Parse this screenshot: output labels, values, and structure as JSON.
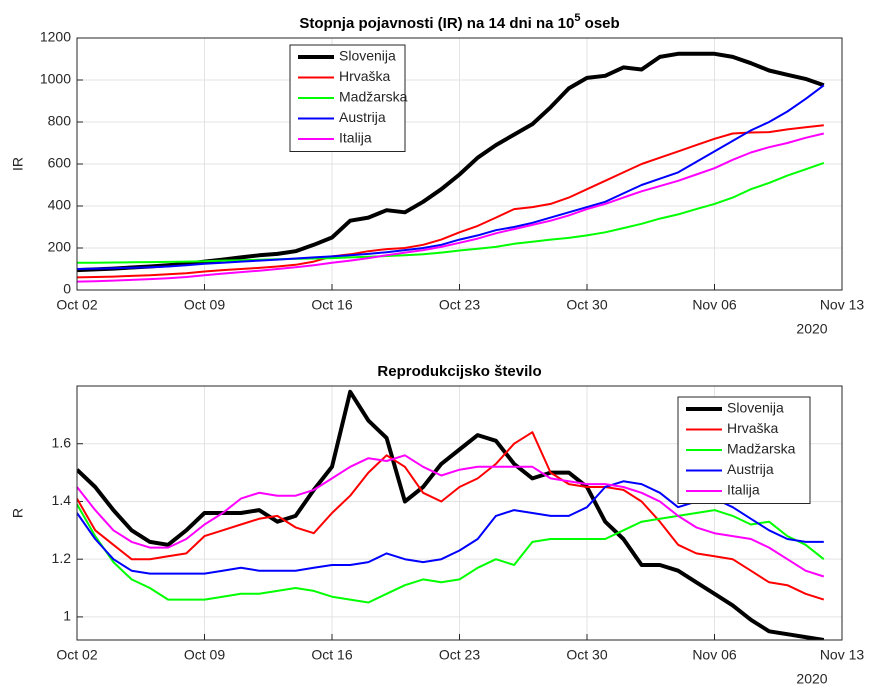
{
  "chart_data": [
    {
      "type": "line",
      "title": [
        "Stopnja pojavnosti (IR) na 14 dni na 10",
        "5",
        " oseb"
      ],
      "ylabel": "IR",
      "x_offset_label": "2020",
      "x": [
        "2020-10-02",
        "2020-10-03",
        "2020-10-04",
        "2020-10-05",
        "2020-10-06",
        "2020-10-07",
        "2020-10-08",
        "2020-10-09",
        "2020-10-10",
        "2020-10-11",
        "2020-10-12",
        "2020-10-13",
        "2020-10-14",
        "2020-10-15",
        "2020-10-16",
        "2020-10-17",
        "2020-10-18",
        "2020-10-19",
        "2020-10-20",
        "2020-10-21",
        "2020-10-22",
        "2020-10-23",
        "2020-10-24",
        "2020-10-25",
        "2020-10-26",
        "2020-10-27",
        "2020-10-28",
        "2020-10-29",
        "2020-10-30",
        "2020-10-31",
        "2020-11-01",
        "2020-11-02",
        "2020-11-03",
        "2020-11-04",
        "2020-11-05",
        "2020-11-06",
        "2020-11-07",
        "2020-11-08",
        "2020-11-09",
        "2020-11-10",
        "2020-11-11",
        "2020-11-12"
      ],
      "xlim": [
        "2020-10-02",
        "2020-11-13"
      ],
      "xticks": [
        {
          "value": "2020-10-02",
          "label": "Oct 02"
        },
        {
          "value": "2020-10-09",
          "label": "Oct 09"
        },
        {
          "value": "2020-10-16",
          "label": "Oct 16"
        },
        {
          "value": "2020-10-23",
          "label": "Oct 23"
        },
        {
          "value": "2020-10-30",
          "label": "Oct 30"
        },
        {
          "value": "2020-11-06",
          "label": "Nov 06"
        },
        {
          "value": "2020-11-13",
          "label": "Nov 13"
        }
      ],
      "ylim": [
        0,
        1200
      ],
      "yticks": [
        0,
        200,
        400,
        600,
        800,
        1000,
        1200
      ],
      "grid": true,
      "legend_loc": "north",
      "series": [
        {
          "name": "Slovenija",
          "color": "#000000",
          "values": [
            95,
            98,
            102,
            107,
            112,
            118,
            125,
            135,
            145,
            155,
            165,
            172,
            185,
            215,
            250,
            330,
            345,
            380,
            370,
            420,
            480,
            550,
            630,
            690,
            740,
            790,
            870,
            960,
            1010,
            1020,
            1060,
            1050,
            1110,
            1125,
            1125,
            1125,
            1110,
            1080,
            1045,
            1025,
            1005,
            975
          ]
        },
        {
          "name": "Hrvaška",
          "color": "#ff0000",
          "values": [
            60,
            62,
            64,
            67,
            70,
            75,
            80,
            88,
            95,
            100,
            105,
            112,
            120,
            135,
            160,
            170,
            185,
            195,
            200,
            215,
            240,
            275,
            305,
            345,
            385,
            395,
            410,
            440,
            480,
            520,
            560,
            600,
            630,
            660,
            690,
            720,
            745,
            750,
            752,
            765,
            775,
            785
          ]
        },
        {
          "name": "Madžarska",
          "color": "#00ff00",
          "values": [
            130,
            130,
            131,
            132,
            133,
            134,
            135,
            137,
            140,
            142,
            144,
            146,
            148,
            150,
            152,
            155,
            158,
            162,
            165,
            170,
            178,
            188,
            196,
            205,
            220,
            230,
            240,
            248,
            260,
            275,
            295,
            315,
            340,
            360,
            385,
            410,
            440,
            480,
            510,
            545,
            575,
            605
          ]
        },
        {
          "name": "Austrija",
          "color": "#0000ff",
          "values": [
            100,
            102,
            104,
            106,
            108,
            112,
            118,
            125,
            130,
            135,
            140,
            145,
            150,
            155,
            160,
            165,
            172,
            180,
            190,
            200,
            215,
            240,
            260,
            285,
            300,
            320,
            345,
            370,
            395,
            420,
            460,
            500,
            530,
            560,
            610,
            660,
            710,
            760,
            800,
            850,
            910,
            975
          ]
        },
        {
          "name": "Italija",
          "color": "#ff00ff",
          "values": [
            40,
            42,
            45,
            48,
            52,
            56,
            62,
            70,
            78,
            85,
            92,
            100,
            108,
            118,
            130,
            140,
            152,
            165,
            178,
            190,
            205,
            225,
            245,
            270,
            290,
            310,
            330,
            355,
            385,
            410,
            440,
            470,
            495,
            520,
            550,
            580,
            620,
            655,
            680,
            700,
            725,
            745
          ]
        }
      ]
    },
    {
      "type": "line",
      "title": [
        "Reprodukcijsko število"
      ],
      "ylabel": "R",
      "x_offset_label": "2020",
      "x": [
        "2020-10-02",
        "2020-10-03",
        "2020-10-04",
        "2020-10-05",
        "2020-10-06",
        "2020-10-07",
        "2020-10-08",
        "2020-10-09",
        "2020-10-10",
        "2020-10-11",
        "2020-10-12",
        "2020-10-13",
        "2020-10-14",
        "2020-10-15",
        "2020-10-16",
        "2020-10-17",
        "2020-10-18",
        "2020-10-19",
        "2020-10-20",
        "2020-10-21",
        "2020-10-22",
        "2020-10-23",
        "2020-10-24",
        "2020-10-25",
        "2020-10-26",
        "2020-10-27",
        "2020-10-28",
        "2020-10-29",
        "2020-10-30",
        "2020-10-31",
        "2020-11-01",
        "2020-11-02",
        "2020-11-03",
        "2020-11-04",
        "2020-11-05",
        "2020-11-06",
        "2020-11-07",
        "2020-11-08",
        "2020-11-09",
        "2020-11-10",
        "2020-11-11",
        "2020-11-12"
      ],
      "xlim": [
        "2020-10-02",
        "2020-11-13"
      ],
      "xticks": [
        {
          "value": "2020-10-02",
          "label": "Oct 02"
        },
        {
          "value": "2020-10-09",
          "label": "Oct 09"
        },
        {
          "value": "2020-10-16",
          "label": "Oct 16"
        },
        {
          "value": "2020-10-23",
          "label": "Oct 23"
        },
        {
          "value": "2020-10-30",
          "label": "Oct 30"
        },
        {
          "value": "2020-11-06",
          "label": "Nov 06"
        },
        {
          "value": "2020-11-13",
          "label": "Nov 13"
        }
      ],
      "ylim": [
        0.92,
        1.8
      ],
      "yticks": [
        1,
        1.2,
        1.4,
        1.6
      ],
      "grid": true,
      "legend_loc": "northeast",
      "series": [
        {
          "name": "Slovenija",
          "color": "#000000",
          "values": [
            1.51,
            1.45,
            1.37,
            1.3,
            1.26,
            1.25,
            1.3,
            1.36,
            1.36,
            1.36,
            1.37,
            1.33,
            1.35,
            1.44,
            1.52,
            1.78,
            1.68,
            1.62,
            1.4,
            1.45,
            1.53,
            1.58,
            1.63,
            1.61,
            1.53,
            1.48,
            1.5,
            1.5,
            1.45,
            1.33,
            1.27,
            1.18,
            1.18,
            1.16,
            1.12,
            1.08,
            1.04,
            0.99,
            0.95,
            0.94,
            0.93,
            0.92
          ]
        },
        {
          "name": "Hrvaška",
          "color": "#ff0000",
          "values": [
            1.41,
            1.3,
            1.25,
            1.2,
            1.2,
            1.21,
            1.22,
            1.28,
            1.3,
            1.32,
            1.34,
            1.35,
            1.31,
            1.29,
            1.36,
            1.42,
            1.5,
            1.56,
            1.52,
            1.43,
            1.4,
            1.45,
            1.48,
            1.53,
            1.6,
            1.64,
            1.5,
            1.46,
            1.45,
            1.45,
            1.44,
            1.4,
            1.33,
            1.25,
            1.22,
            1.21,
            1.2,
            1.16,
            1.12,
            1.11,
            1.08,
            1.06
          ]
        },
        {
          "name": "Madžarska",
          "color": "#00ff00",
          "values": [
            1.39,
            1.28,
            1.19,
            1.13,
            1.1,
            1.06,
            1.06,
            1.06,
            1.07,
            1.08,
            1.08,
            1.09,
            1.1,
            1.09,
            1.07,
            1.06,
            1.05,
            1.08,
            1.11,
            1.13,
            1.12,
            1.13,
            1.17,
            1.2,
            1.18,
            1.26,
            1.27,
            1.27,
            1.27,
            1.27,
            1.3,
            1.33,
            1.34,
            1.35,
            1.36,
            1.37,
            1.35,
            1.32,
            1.33,
            1.28,
            1.25,
            1.2
          ]
        },
        {
          "name": "Austrija",
          "color": "#0000ff",
          "values": [
            1.36,
            1.27,
            1.2,
            1.16,
            1.15,
            1.15,
            1.15,
            1.15,
            1.16,
            1.17,
            1.16,
            1.16,
            1.16,
            1.17,
            1.18,
            1.18,
            1.19,
            1.22,
            1.2,
            1.19,
            1.2,
            1.23,
            1.27,
            1.35,
            1.37,
            1.36,
            1.35,
            1.35,
            1.38,
            1.45,
            1.47,
            1.46,
            1.43,
            1.38,
            1.4,
            1.41,
            1.38,
            1.34,
            1.3,
            1.27,
            1.26,
            1.26
          ]
        },
        {
          "name": "Italija",
          "color": "#ff00ff",
          "values": [
            1.45,
            1.37,
            1.3,
            1.26,
            1.24,
            1.24,
            1.27,
            1.32,
            1.36,
            1.41,
            1.43,
            1.42,
            1.42,
            1.44,
            1.48,
            1.52,
            1.55,
            1.54,
            1.56,
            1.52,
            1.49,
            1.51,
            1.52,
            1.52,
            1.52,
            1.52,
            1.48,
            1.47,
            1.46,
            1.46,
            1.45,
            1.43,
            1.4,
            1.35,
            1.31,
            1.29,
            1.28,
            1.27,
            1.24,
            1.2,
            1.16,
            1.14
          ]
        }
      ]
    }
  ]
}
